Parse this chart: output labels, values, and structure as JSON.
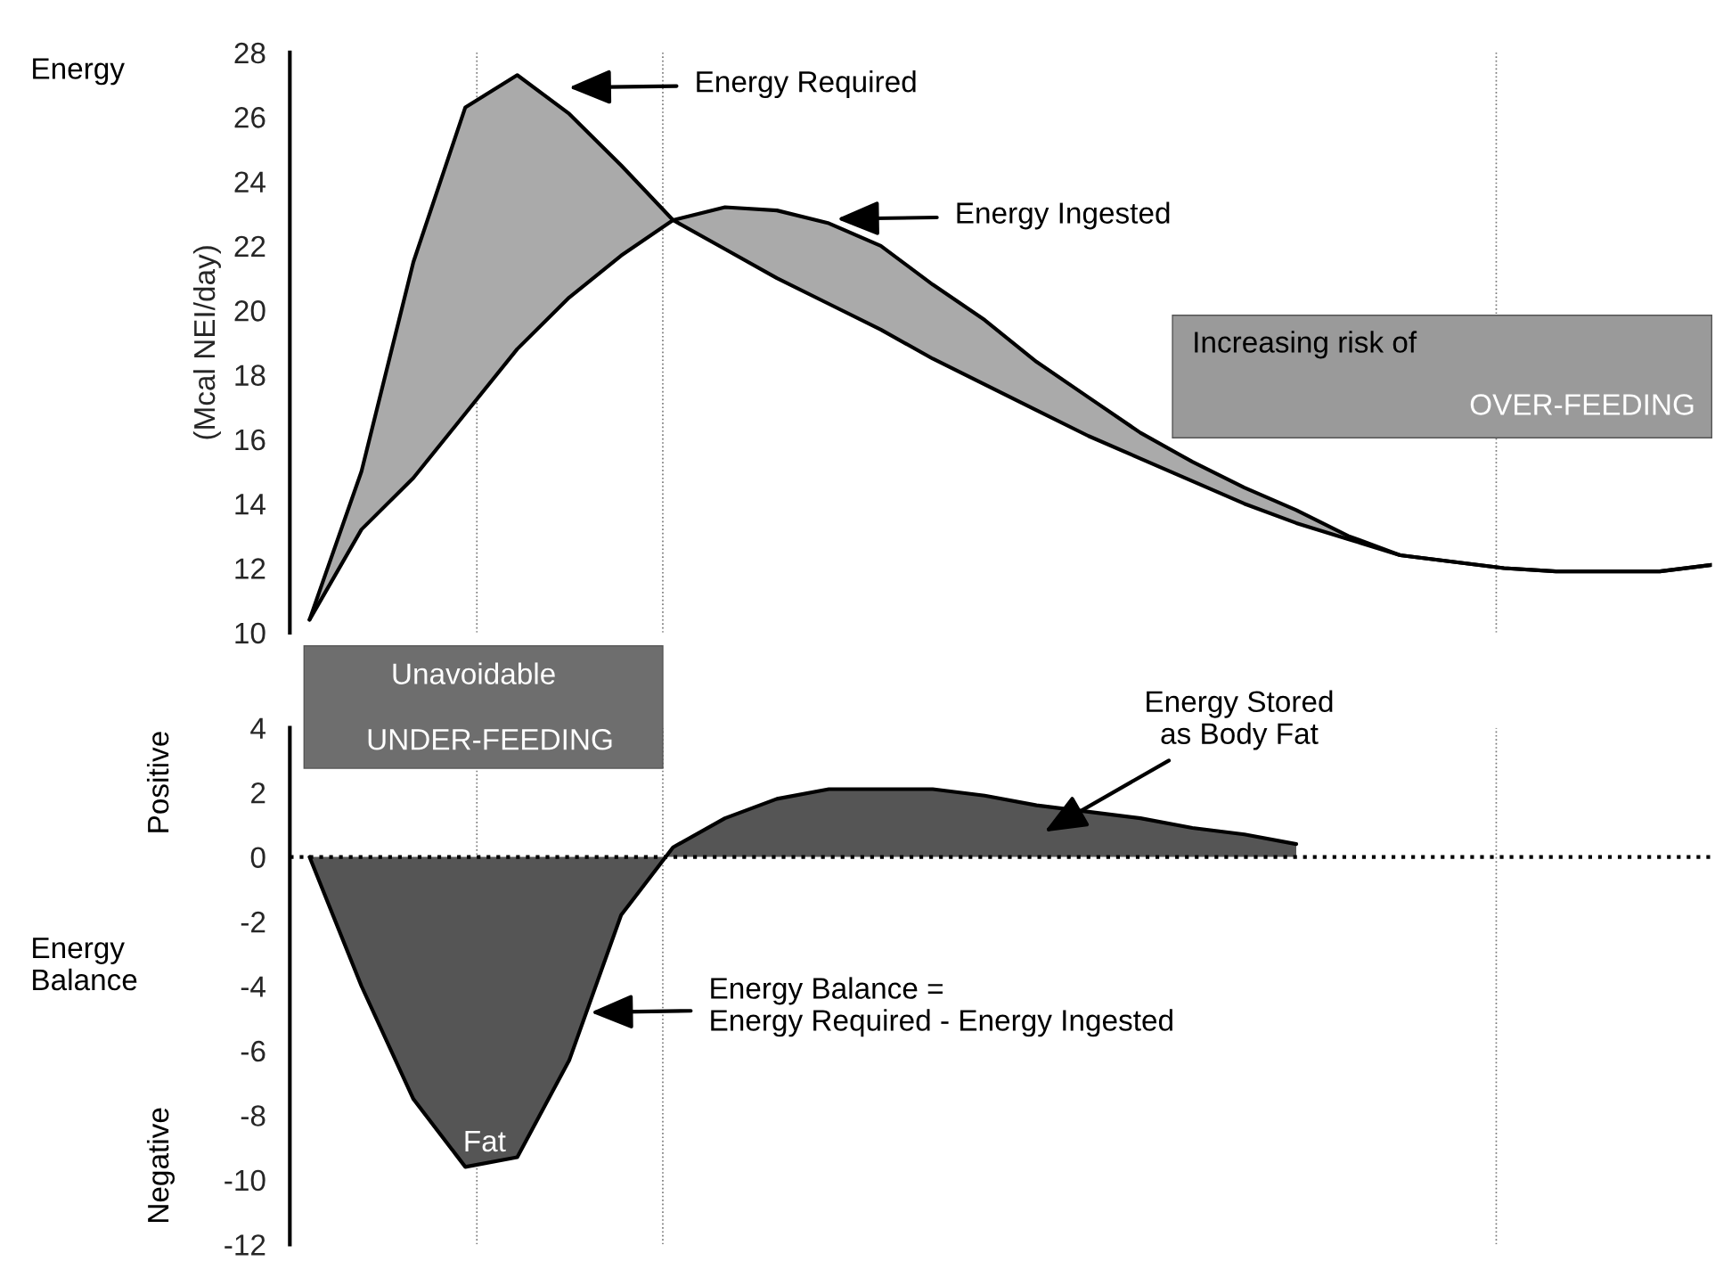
{
  "chart_data": [
    {
      "type": "line",
      "ylabel": "(Mcal NEI/day)",
      "categories": [
        null,
        null,
        null,
        null,
        null,
        null,
        null,
        null,
        null,
        null,
        null,
        null,
        null,
        null,
        null,
        null,
        null,
        null,
        null,
        null,
        null,
        null,
        null,
        null,
        null,
        null,
        null,
        null
      ],
      "series": [
        {
          "type": "line",
          "color": "#000000",
          "values": [
            10.4,
            15.0,
            21.5,
            26.3,
            27.3,
            26.1,
            24.5,
            22.8,
            21.9,
            21.0,
            20.2,
            19.4,
            18.5,
            17.7,
            16.9,
            16.1,
            15.4,
            14.7,
            14.0,
            13.4,
            12.9,
            12.4,
            12.2,
            12.0,
            11.9,
            11.9,
            11.9,
            12.1
          ]
        },
        {
          "type": "line",
          "color": "#000000",
          "values": [
            10.4,
            13.2,
            14.8,
            16.8,
            18.8,
            20.4,
            21.7,
            22.8,
            23.2,
            23.1,
            22.7,
            22.0,
            20.8,
            19.7,
            18.4,
            17.3,
            16.2,
            15.3,
            14.5,
            13.8,
            13.0,
            12.4,
            12.2,
            12.0,
            11.9,
            11.9,
            11.9,
            12.1
          ]
        }
      ],
      "ylim": [
        10,
        28
      ],
      "yticks": [
        10,
        12,
        14,
        16,
        18,
        20,
        22,
        24,
        26,
        28
      ],
      "tick_labels": "y",
      "legend": false,
      "annotations": [
        "Energy",
        "Energy Required",
        "Energy Ingested",
        "Increasing risk of",
        "OVER-FEEDING"
      ]
    },
    {
      "type": "area",
      "categories": [
        null,
        null,
        null,
        null,
        null,
        null,
        null,
        null,
        null,
        null,
        null,
        null,
        null,
        null,
        null,
        null,
        null,
        null,
        null,
        null,
        null,
        null,
        null,
        null,
        null,
        null,
        null,
        null
      ],
      "series": [
        {
          "type": "area",
          "color": "#555555",
          "values": [
            0,
            -4.0,
            -7.5,
            -9.6,
            -9.3,
            -6.3,
            -1.8,
            0.3,
            1.2,
            1.8,
            2.1,
            2.1,
            2.1,
            1.9,
            1.6,
            1.4,
            1.2,
            0.9,
            0.7,
            0.4,
            null,
            null,
            null,
            null,
            null,
            null,
            null,
            null
          ]
        }
      ],
      "ylim": [
        -12,
        4
      ],
      "yticks": [
        -12,
        -10,
        -8,
        -6,
        -4,
        -2,
        0,
        2,
        4
      ],
      "tick_labels": "y",
      "legend": false,
      "ref_lines": [
        {
          "axis": "y",
          "value": 0,
          "color": "#000000",
          "line_style": "dotted"
        }
      ],
      "annotations": [
        "Unavoidable",
        "UNDER-FEEDING",
        "Energy Stored\nas Body Fat",
        "Energy Balance =\nEnergy Required - Energy Ingested",
        "Fat",
        "Energy\nBalance",
        "Positive",
        "Negative"
      ]
    }
  ]
}
